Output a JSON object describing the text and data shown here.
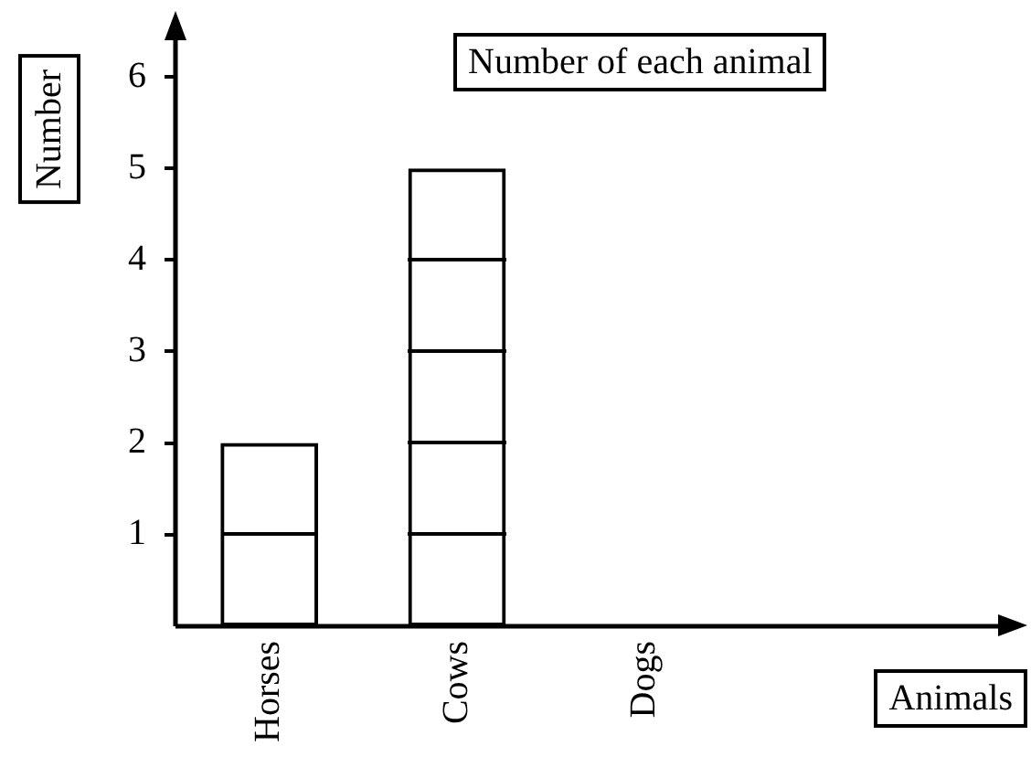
{
  "chart_data": {
    "type": "bar",
    "title": "Number of each animal",
    "xlabel": "Animals",
    "ylabel": "Number",
    "categories": [
      "Horses",
      "Cows",
      "Dogs"
    ],
    "values": [
      2,
      5,
      0
    ],
    "color": "#000000",
    "ylim": [
      0,
      6.4
    ],
    "yticks": [
      1,
      2,
      3,
      4,
      5,
      6
    ],
    "legend": false
  }
}
